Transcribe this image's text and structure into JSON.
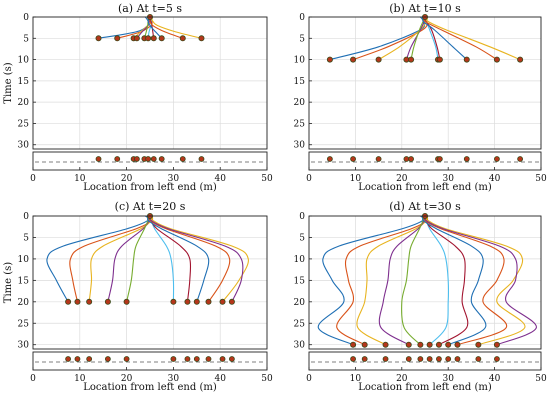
{
  "colors": {
    "trajectories": [
      "#1f6fb4",
      "#d95319",
      "#e8b420",
      "#7e2f8e",
      "#77ac30",
      "#4dbeee",
      "#a2142f"
    ],
    "marker_fill": "#b5361b",
    "marker_stroke": "#3a4a1a",
    "grid": "#dcdcdc"
  },
  "chart_data": [
    {
      "type": "line",
      "title": "(a) At t=5 s",
      "xlabel": "Location from left end (m)",
      "ylabel": "Time (s)",
      "xlim": [
        0,
        50
      ],
      "ylim": [
        0,
        31
      ],
      "y_inverted": true,
      "xticks": [
        "0",
        "10",
        "20",
        "30",
        "40",
        "50"
      ],
      "yticks": [
        "0",
        "5",
        "10",
        "15",
        "20",
        "25",
        "30"
      ],
      "grid": true,
      "origin_x": 25,
      "current_time": 5,
      "series": [
        {
          "x": [
            24.0,
            24.6,
            24.5,
            22.0,
            14.0
          ],
          "y": [
            0,
            1,
            2,
            3.5,
            5
          ]
        },
        {
          "x": [
            25.0,
            25.4,
            25.2,
            23.0,
            18.0
          ],
          "y": [
            0,
            1,
            2,
            3.5,
            5
          ]
        },
        {
          "x": [
            25.5,
            25.3,
            24.5,
            23.0,
            21.5
          ],
          "y": [
            0,
            1,
            2,
            3.5,
            5
          ]
        },
        {
          "x": [
            24.5,
            24.8,
            24.6,
            23.3,
            22.2
          ],
          "y": [
            0,
            1,
            2,
            3.5,
            5
          ]
        },
        {
          "x": [
            25.0,
            24.6,
            24.5,
            24.2,
            23.8
          ],
          "y": [
            0,
            1,
            2,
            3.5,
            5
          ]
        },
        {
          "x": [
            25.2,
            25.3,
            25.2,
            24.8,
            24.6
          ],
          "y": [
            0,
            1,
            2,
            3.5,
            5
          ]
        },
        {
          "x": [
            24.8,
            25.2,
            25.4,
            25.6,
            25.8
          ],
          "y": [
            0,
            1,
            2,
            3.5,
            5
          ]
        },
        {
          "x": [
            25.0,
            24.6,
            25.0,
            26.2,
            27.5
          ],
          "y": [
            0,
            1,
            2,
            3.5,
            5
          ]
        },
        {
          "x": [
            25.0,
            25.0,
            25.6,
            28.2,
            32.0
          ],
          "y": [
            0,
            1,
            2,
            3.5,
            5
          ]
        },
        {
          "x": [
            25.0,
            25.6,
            26.6,
            30.5,
            36.0
          ],
          "y": [
            0,
            1,
            2,
            3.5,
            5
          ]
        }
      ],
      "strip_points": [
        14.0,
        18.0,
        21.5,
        22.2,
        23.8,
        24.6,
        25.8,
        27.5,
        32.0,
        36.0
      ]
    },
    {
      "type": "line",
      "title": "(b) At t=10 s",
      "xlabel": "Location from left end (m)",
      "ylabel": "",
      "xlim": [
        0,
        50
      ],
      "ylim": [
        0,
        31
      ],
      "y_inverted": true,
      "xticks": [
        "0",
        "10",
        "20",
        "30",
        "40",
        "50"
      ],
      "yticks": [
        "0",
        "5",
        "10",
        "15",
        "20",
        "25",
        "30"
      ],
      "grid": true,
      "origin_x": 25,
      "current_time": 10,
      "series": [
        {
          "x": [
            24.0,
            24.6,
            24.0,
            15.0,
            4.5
          ],
          "y": [
            0,
            1,
            3,
            7,
            10
          ]
        },
        {
          "x": [
            25.0,
            25.4,
            24.5,
            17.0,
            9.5
          ],
          "y": [
            0,
            1,
            3,
            7,
            10
          ]
        },
        {
          "x": [
            25.5,
            25.3,
            24.0,
            19.5,
            15.0
          ],
          "y": [
            0,
            1,
            3,
            7,
            10
          ]
        },
        {
          "x": [
            24.5,
            24.8,
            24.0,
            22.0,
            21.0
          ],
          "y": [
            0,
            1,
            3,
            7,
            10
          ]
        },
        {
          "x": [
            25.0,
            24.6,
            23.8,
            22.6,
            22.0
          ],
          "y": [
            0,
            1,
            3,
            7,
            10
          ]
        },
        {
          "x": [
            25.2,
            25.3,
            26.0,
            27.3,
            27.8
          ],
          "y": [
            0,
            1,
            3,
            7,
            10
          ]
        },
        {
          "x": [
            24.8,
            25.2,
            26.4,
            27.6,
            28.2
          ],
          "y": [
            0,
            1,
            3,
            7,
            10
          ]
        },
        {
          "x": [
            25.0,
            24.6,
            27.0,
            31.0,
            34.0
          ],
          "y": [
            0,
            1,
            3,
            7,
            10
          ]
        },
        {
          "x": [
            25.0,
            25.0,
            28.5,
            36.0,
            40.5
          ],
          "y": [
            0,
            1,
            3,
            7,
            10
          ]
        },
        {
          "x": [
            25.0,
            25.6,
            29.5,
            39.0,
            45.5
          ],
          "y": [
            0,
            1,
            3,
            7,
            10
          ]
        }
      ],
      "strip_points": [
        4.5,
        9.5,
        15.0,
        21.0,
        22.0,
        27.8,
        28.2,
        34.0,
        40.5,
        45.5
      ]
    },
    {
      "type": "line",
      "title": "(c) At t=20 s",
      "xlabel": "Location from left end (m)",
      "ylabel": "Time (s)",
      "xlim": [
        0,
        50
      ],
      "ylim": [
        0,
        31
      ],
      "y_inverted": true,
      "xticks": [
        "0",
        "10",
        "20",
        "30",
        "40",
        "50"
      ],
      "yticks": [
        "0",
        "5",
        "10",
        "15",
        "20",
        "25",
        "30"
      ],
      "grid": true,
      "origin_x": 25,
      "current_time": 20,
      "series": [
        {
          "x": [
            24.0,
            24.6,
            20.0,
            6.5,
            3.0,
            5.0,
            7.5
          ],
          "y": [
            0,
            1,
            3,
            7,
            10,
            15,
            20
          ]
        },
        {
          "x": [
            25.0,
            25.4,
            22.0,
            11.0,
            8.0,
            8.5,
            9.5
          ],
          "y": [
            0,
            1,
            3,
            7,
            10,
            15,
            20
          ]
        },
        {
          "x": [
            25.5,
            25.3,
            23.0,
            15.0,
            12.5,
            12.5,
            12.0
          ],
          "y": [
            0,
            1,
            3,
            7,
            10,
            15,
            20
          ]
        },
        {
          "x": [
            24.5,
            24.8,
            23.5,
            19.0,
            17.5,
            17.0,
            16.0
          ],
          "y": [
            0,
            1,
            3,
            7,
            10,
            15,
            20
          ]
        },
        {
          "x": [
            25.0,
            24.6,
            23.8,
            22.0,
            21.5,
            21.0,
            20.0
          ],
          "y": [
            0,
            1,
            3,
            7,
            10,
            15,
            20
          ]
        },
        {
          "x": [
            25.2,
            25.3,
            26.0,
            28.5,
            29.5,
            30.0,
            30.0
          ],
          "y": [
            0,
            1,
            3,
            7,
            10,
            15,
            20
          ]
        },
        {
          "x": [
            24.8,
            25.2,
            26.5,
            31.5,
            33.5,
            33.5,
            33.0
          ],
          "y": [
            0,
            1,
            3,
            7,
            10,
            15,
            20
          ]
        },
        {
          "x": [
            25.0,
            24.6,
            27.5,
            35.0,
            37.5,
            36.5,
            35.0
          ],
          "y": [
            0,
            1,
            3,
            7,
            10,
            15,
            20
          ]
        },
        {
          "x": [
            25.0,
            25.0,
            28.5,
            39.0,
            42.0,
            40.5,
            37.5
          ],
          "y": [
            0,
            1,
            3,
            7,
            10,
            15,
            20
          ]
        },
        {
          "x": [
            25.0,
            25.6,
            29.5,
            42.5,
            46.0,
            44.0,
            40.5
          ],
          "y": [
            0,
            1,
            3,
            7,
            10,
            15,
            20
          ]
        },
        {
          "x": [
            25.0,
            25.2,
            29.0,
            41.0,
            44.5,
            44.5,
            42.5
          ],
          "y": [
            0,
            1,
            3,
            7,
            10,
            15,
            20
          ]
        }
      ],
      "strip_points": [
        7.5,
        9.5,
        12.0,
        16.0,
        20.0,
        30.0,
        33.0,
        35.0,
        37.5,
        40.5,
        42.5
      ]
    },
    {
      "type": "line",
      "title": "(d) At t=30 s",
      "xlabel": "Location from left end (m)",
      "ylabel": "",
      "xlim": [
        0,
        50
      ],
      "ylim": [
        0,
        31
      ],
      "y_inverted": true,
      "xticks": [
        "0",
        "10",
        "20",
        "30",
        "40",
        "50"
      ],
      "yticks": [
        "0",
        "5",
        "10",
        "15",
        "20",
        "25",
        "30"
      ],
      "grid": true,
      "origin_x": 25,
      "current_time": 30,
      "series": [
        {
          "x": [
            24.0,
            24.6,
            20.0,
            6.5,
            3.0,
            5.0,
            7.5,
            2.0,
            9.5
          ],
          "y": [
            0,
            1,
            3,
            7,
            10,
            15,
            20,
            26,
            30
          ]
        },
        {
          "x": [
            25.0,
            25.4,
            22.0,
            11.0,
            8.0,
            8.5,
            9.5,
            6.0,
            12.0
          ],
          "y": [
            0,
            1,
            3,
            7,
            10,
            15,
            20,
            26,
            30
          ]
        },
        {
          "x": [
            25.5,
            25.3,
            23.0,
            15.0,
            12.5,
            12.5,
            12.0,
            10.5,
            16.5
          ],
          "y": [
            0,
            1,
            3,
            7,
            10,
            15,
            20,
            26,
            30
          ]
        },
        {
          "x": [
            24.5,
            24.8,
            23.5,
            19.0,
            17.5,
            17.0,
            16.0,
            15.5,
            21.5
          ],
          "y": [
            0,
            1,
            3,
            7,
            10,
            15,
            20,
            26,
            30
          ]
        },
        {
          "x": [
            25.0,
            24.6,
            23.8,
            22.0,
            21.5,
            21.0,
            20.0,
            20.5,
            24.0
          ],
          "y": [
            0,
            1,
            3,
            7,
            10,
            15,
            20,
            26,
            30
          ]
        },
        {
          "x": [
            25.2,
            25.3,
            26.0,
            28.5,
            29.5,
            30.0,
            30.0,
            29.5,
            26.0
          ],
          "y": [
            0,
            1,
            3,
            7,
            10,
            15,
            20,
            26,
            30
          ]
        },
        {
          "x": [
            24.8,
            25.2,
            26.5,
            31.5,
            33.5,
            33.5,
            33.0,
            34.0,
            28.0
          ],
          "y": [
            0,
            1,
            3,
            7,
            10,
            15,
            20,
            26,
            30
          ]
        },
        {
          "x": [
            25.0,
            24.6,
            27.5,
            35.0,
            37.5,
            36.5,
            35.0,
            38.0,
            30.0
          ],
          "y": [
            0,
            1,
            3,
            7,
            10,
            15,
            20,
            26,
            30
          ]
        },
        {
          "x": [
            25.0,
            25.0,
            28.5,
            39.0,
            42.0,
            40.5,
            37.5,
            42.5,
            32.0
          ],
          "y": [
            0,
            1,
            3,
            7,
            10,
            15,
            20,
            26,
            30
          ]
        },
        {
          "x": [
            25.0,
            25.6,
            29.5,
            42.5,
            46.0,
            44.0,
            40.5,
            46.5,
            36.5
          ],
          "y": [
            0,
            1,
            3,
            7,
            10,
            15,
            20,
            26,
            30
          ]
        },
        {
          "x": [
            25.0,
            25.2,
            29.0,
            41.0,
            44.5,
            44.5,
            42.5,
            49.0,
            40.5
          ],
          "y": [
            0,
            1,
            3,
            7,
            10,
            15,
            20,
            26,
            30
          ]
        }
      ],
      "strip_points": [
        9.5,
        12.0,
        16.5,
        21.5,
        24.0,
        26.0,
        28.0,
        30.0,
        32.0,
        36.5,
        40.5
      ]
    }
  ]
}
